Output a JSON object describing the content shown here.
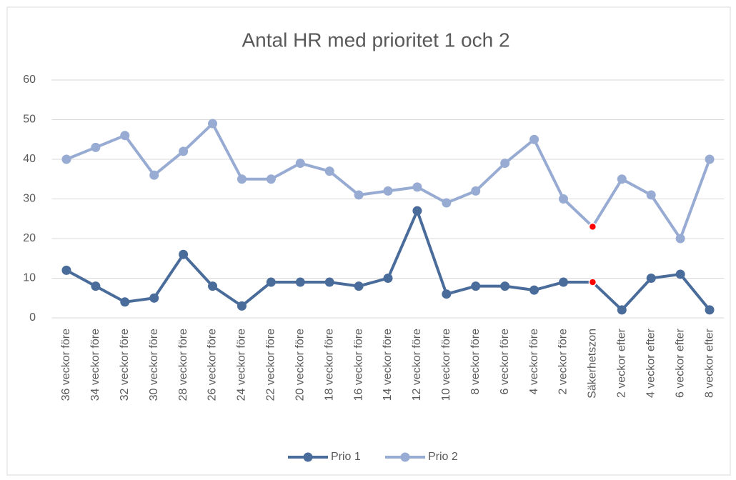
{
  "chart_data": {
    "type": "line",
    "title": "Antal HR med prioritet 1 och 2",
    "categories": [
      "36 veckor före",
      "34 veckor före",
      "32 veckor före",
      "30 veckor före",
      "28 veckor före",
      "26 veckor före",
      "24 veckor före",
      "22 veckor före",
      "20 veckor före",
      "18 veckor före",
      "16 veckor före",
      "14 veckor före",
      "12 veckor före",
      "10 veckor före",
      "8 veckor före",
      "6 veckor före",
      "4 veckor före",
      "2 veckor före",
      "Säkerhetszon",
      "2 veckor efter",
      "4 veckor efter",
      "6 veckor efter",
      "8 veckor efter"
    ],
    "series": [
      {
        "name": "Prio 1",
        "color": "#4a6c9b",
        "values": [
          12,
          8,
          4,
          5,
          16,
          8,
          3,
          9,
          9,
          9,
          8,
          10,
          27,
          6,
          8,
          8,
          7,
          9,
          9,
          2,
          10,
          11,
          2
        ]
      },
      {
        "name": "Prio 2",
        "color": "#98abd3",
        "values": [
          40,
          43,
          46,
          36,
          42,
          49,
          35,
          35,
          39,
          37,
          31,
          32,
          33,
          29,
          32,
          39,
          45,
          30,
          23,
          35,
          31,
          20,
          40
        ]
      }
    ],
    "highlight_category": "Säkerhetszon",
    "highlight_color": "#ff0000",
    "ylim": [
      0,
      60
    ],
    "yticks": [
      0,
      10,
      20,
      30,
      40,
      50,
      60
    ],
    "grid": true,
    "legend": "bottom"
  }
}
